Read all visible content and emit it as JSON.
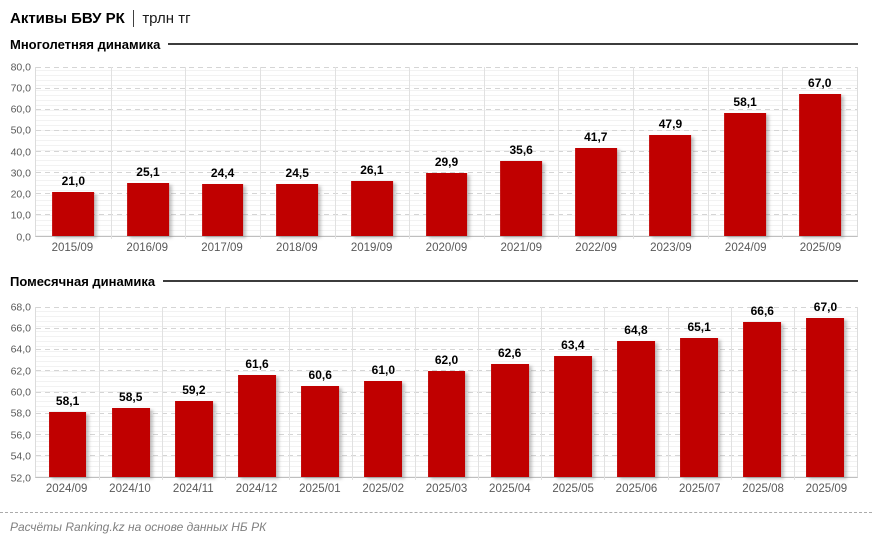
{
  "header": {
    "title": "Активы БВУ РК",
    "units": "трлн тг"
  },
  "footer": {
    "credit": "Расчёты Ranking.kz на основе данных НБ РК"
  },
  "colors": {
    "bar": "#c00000",
    "axis_text": "#595959",
    "grid_major": "#d5d5d5",
    "grid_minor": "#f2f2f2",
    "section_rule": "#3c3c3c",
    "footer_text": "#7f7f7f"
  },
  "chart_data": [
    {
      "type": "bar",
      "title": "Многолетняя динамика",
      "categories": [
        "2015/09",
        "2016/09",
        "2017/09",
        "2018/09",
        "2019/09",
        "2020/09",
        "2021/09",
        "2022/09",
        "2023/09",
        "2024/09",
        "2025/09"
      ],
      "values": [
        21.0,
        25.1,
        24.4,
        24.5,
        26.1,
        29.9,
        35.6,
        41.7,
        47.9,
        58.1,
        67.0
      ],
      "value_labels": [
        "21,0",
        "25,1",
        "24,4",
        "24,5",
        "26,1",
        "29,9",
        "35,6",
        "41,7",
        "47,9",
        "58,1",
        "67,0"
      ],
      "xlabel": "",
      "ylabel": "",
      "ylim": [
        0,
        80
      ],
      "ytick_step": 10,
      "ytick_labels": [
        "0,0",
        "10,0",
        "20,0",
        "30,0",
        "40,0",
        "50,0",
        "60,0",
        "70,0",
        "80,0"
      ],
      "grid": true,
      "legend": "none",
      "bar_color": "#c00000"
    },
    {
      "type": "bar",
      "title": "Помесячная динамика",
      "categories": [
        "2024/09",
        "2024/10",
        "2024/11",
        "2024/12",
        "2025/01",
        "2025/02",
        "2025/03",
        "2025/04",
        "2025/05",
        "2025/06",
        "2025/07",
        "2025/08",
        "2025/09"
      ],
      "values": [
        58.1,
        58.5,
        59.2,
        61.6,
        60.6,
        61.0,
        62.0,
        62.6,
        63.4,
        64.8,
        65.1,
        66.6,
        67.0
      ],
      "value_labels": [
        "58,1",
        "58,5",
        "59,2",
        "61,6",
        "60,6",
        "61,0",
        "62,0",
        "62,6",
        "63,4",
        "64,8",
        "65,1",
        "66,6",
        "67,0"
      ],
      "xlabel": "",
      "ylabel": "",
      "ylim": [
        52,
        68
      ],
      "ytick_step": 2,
      "ytick_labels": [
        "52,0",
        "54,0",
        "56,0",
        "58,0",
        "60,0",
        "62,0",
        "64,0",
        "66,0",
        "68,0"
      ],
      "grid": true,
      "legend": "none",
      "bar_color": "#c00000"
    }
  ]
}
